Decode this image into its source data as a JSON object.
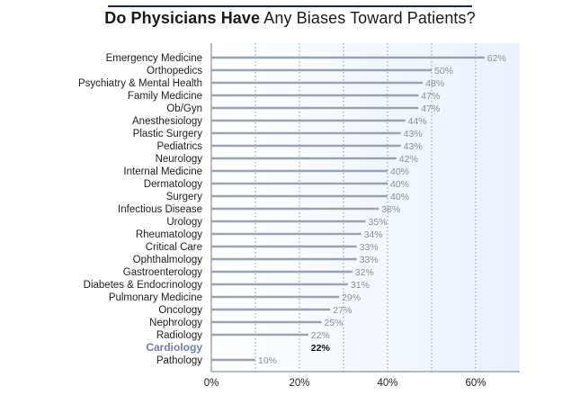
{
  "title_bold": "Do Physicians Have",
  "title_rest": " Any Biases Toward Patients?",
  "colors": {
    "bar": "#9aa3b2",
    "highlight_bar": "#1f3657",
    "highlight_label": "#6b7db8",
    "background": "#eaf2fd",
    "title_rule": "#1c2b4a"
  },
  "chart_data": {
    "type": "bar",
    "orientation": "horizontal",
    "title": "Do Physicians Have Any Biases Toward Patients?",
    "categories": [
      "Emergency Medicine",
      "Orthopedics",
      "Psychiatry & Mental Health",
      "Family Medicine",
      "Ob/Gyn",
      "Anesthesiology",
      "Plastic Surgery",
      "Pediatrics",
      "Neurology",
      "Internal Medicine",
      "Dermatology",
      "Surgery",
      "Infectious Disease",
      "Urology",
      "Rheumatology",
      "Critical Care",
      "Ophthalmology",
      "Gastroenterology",
      "Diabetes & Endocrinology",
      "Pulmonary Medicine",
      "Oncology",
      "Nephrology",
      "Radiology",
      "Cardiology",
      "Pathology"
    ],
    "values": [
      62,
      50,
      48,
      47,
      47,
      44,
      43,
      43,
      42,
      40,
      40,
      40,
      38,
      35,
      34,
      33,
      33,
      32,
      31,
      29,
      27,
      25,
      22,
      22,
      10
    ],
    "value_labels": [
      "62%",
      "50%",
      "48%",
      "47%",
      "47%",
      "44%",
      "43%",
      "43%",
      "42%",
      "40%",
      "40%",
      "40%",
      "38%",
      "35%",
      "34%",
      "33%",
      "33%",
      "32%",
      "31%",
      "29%",
      "27%",
      "25%",
      "22%",
      "22%",
      "10%"
    ],
    "highlight": "Cardiology",
    "xlim": [
      0,
      70
    ],
    "x_ticks": [
      0,
      20,
      40,
      60
    ],
    "x_tick_labels": [
      "0%",
      "20%",
      "40%",
      "60%"
    ],
    "grid_x": [
      10,
      20,
      30,
      40,
      50,
      60
    ],
    "grid": true,
    "xlabel": "",
    "ylabel": ""
  }
}
